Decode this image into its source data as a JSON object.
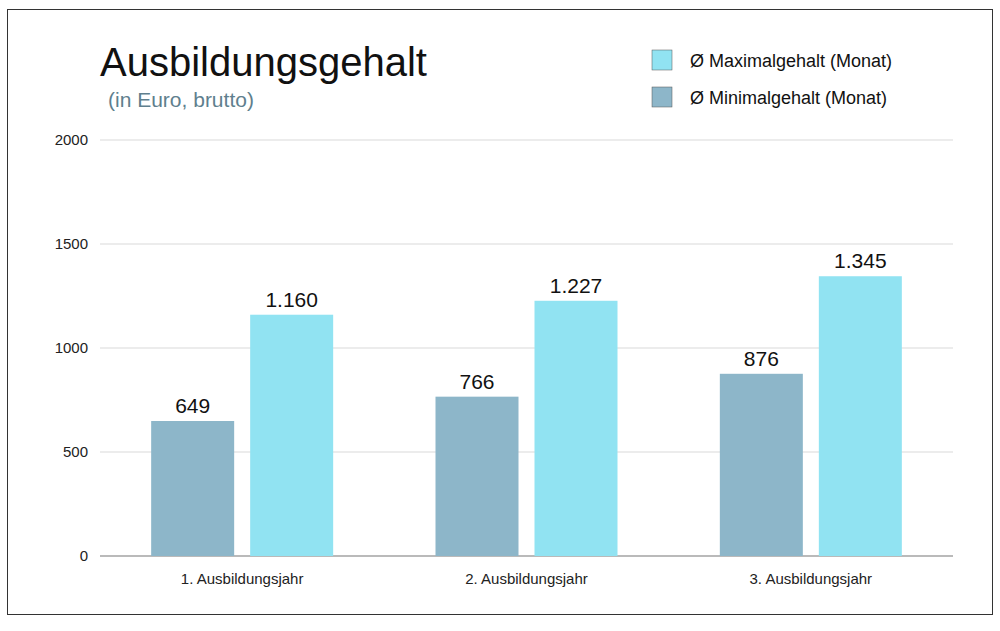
{
  "chart_data": {
    "type": "bar",
    "title": "Ausbildungsgehalt",
    "subtitle": "(in Euro, brutto)",
    "categories": [
      "1. Ausbildungsjahr",
      "2. Ausbildungsjahr",
      "3. Ausbildungsjahr"
    ],
    "series": [
      {
        "name": "Ø Minimalgehalt (Monat)",
        "color": "#8db6c9",
        "values": [
          649,
          766,
          876
        ]
      },
      {
        "name": "Ø Maximalgehalt (Monat)",
        "color": "#91e3f2",
        "values": [
          1160,
          1227,
          1345
        ],
        "value_labels": [
          "1.160",
          "1.227",
          "1.345"
        ]
      }
    ],
    "ylim": [
      0,
      2000
    ],
    "yticks": [
      0,
      500,
      1000,
      1500,
      2000
    ],
    "grid": true,
    "legend": "top-right",
    "data_labels": true
  }
}
